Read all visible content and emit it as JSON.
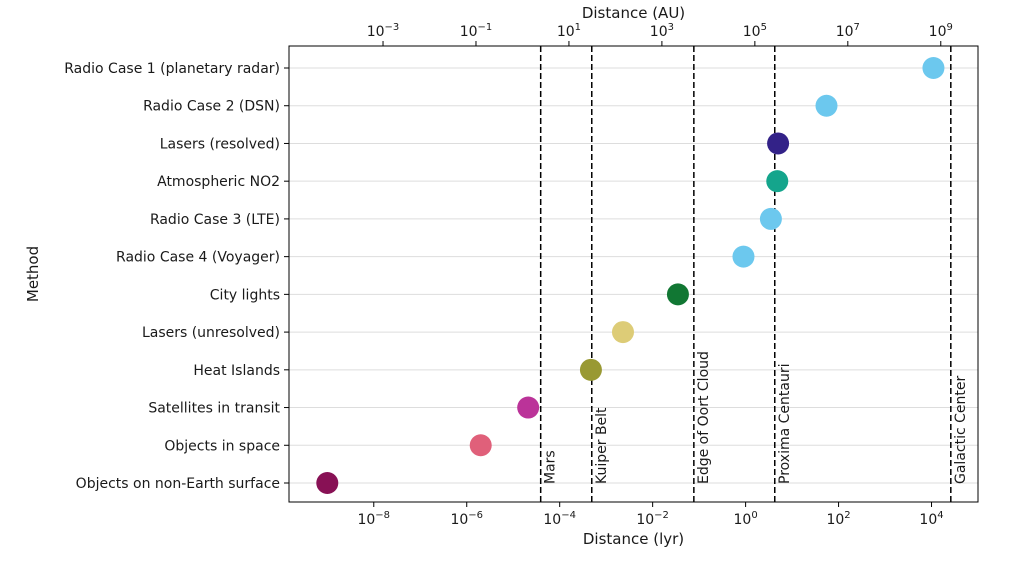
{
  "chart_data": {
    "type": "scatter",
    "title": "",
    "xlabel": "Distance (lyr)",
    "x2label": "Distance (AU)",
    "ylabel": "Method",
    "xscale": "log",
    "xlim": [
      1.5e-10,
      100000.0
    ],
    "grid": "horizontal",
    "bottom_ticks": [
      {
        "value": 1e-08,
        "base": "10",
        "exp": "−8"
      },
      {
        "value": 1e-06,
        "base": "10",
        "exp": "−6"
      },
      {
        "value": 0.0001,
        "base": "10",
        "exp": "−4"
      },
      {
        "value": 0.01,
        "base": "10",
        "exp": "−2"
      },
      {
        "value": 1,
        "base": "10",
        "exp": "0"
      },
      {
        "value": 100.0,
        "base": "10",
        "exp": "2"
      },
      {
        "value": 10000.0,
        "base": "10",
        "exp": "4"
      }
    ],
    "top_ticks": [
      {
        "value": 0.001,
        "base": "10",
        "exp": "−3"
      },
      {
        "value": 0.1,
        "base": "10",
        "exp": "−1"
      },
      {
        "value": 10.0,
        "base": "10",
        "exp": "1"
      },
      {
        "value": 1000.0,
        "base": "10",
        "exp": "3"
      },
      {
        "value": 100000.0,
        "base": "10",
        "exp": "5"
      },
      {
        "value": 10000000.0,
        "base": "10",
        "exp": "7"
      },
      {
        "value": 1000000000.0,
        "base": "10",
        "exp": "9"
      }
    ],
    "categories": [
      "Radio Case 1 (planetary radar)",
      "Radio Case 2 (DSN)",
      "Lasers (resolved)",
      "Atmospheric NO2",
      "Radio Case 3 (LTE)",
      "Radio Case 4 (Voyager)",
      "City lights",
      "Lasers (unresolved)",
      "Heat Islands",
      "Satellites in transit",
      "Objects in space",
      "Objects on non-Earth surface"
    ],
    "points": [
      {
        "category": "Radio Case 1 (planetary radar)",
        "x": 11000.0,
        "color": "#6cc8ee"
      },
      {
        "category": "Radio Case 2 (DSN)",
        "x": 55,
        "color": "#6cc8ee"
      },
      {
        "category": "Lasers (resolved)",
        "x": 5.0,
        "color": "#332288"
      },
      {
        "category": "Atmospheric NO2",
        "x": 4.8,
        "color": "#14a58c"
      },
      {
        "category": "Radio Case 3 (LTE)",
        "x": 3.5,
        "color": "#6cc8ee"
      },
      {
        "category": "Radio Case 4 (Voyager)",
        "x": 0.9,
        "color": "#6cc8ee"
      },
      {
        "category": "City lights",
        "x": 0.035,
        "color": "#117733"
      },
      {
        "category": "Lasers (unresolved)",
        "x": 0.0023,
        "color": "#ddcc77"
      },
      {
        "category": "Heat Islands",
        "x": 0.00047,
        "color": "#999933"
      },
      {
        "category": "Satellites in transit",
        "x": 2.1e-05,
        "color": "#bb3399"
      },
      {
        "category": "Objects in space",
        "x": 2e-06,
        "color": "#e0607a"
      },
      {
        "category": "Objects on non-Earth surface",
        "x": 1e-09,
        "color": "#881155"
      }
    ],
    "reference_lines": [
      {
        "label": "Mars",
        "x": 3.9e-05
      },
      {
        "label": "Kuiper Belt",
        "x": 0.00049
      },
      {
        "label": "Edge of Oort Cloud",
        "x": 0.077
      },
      {
        "label": "Proxima Centauri",
        "x": 4.24
      },
      {
        "label": "Galactic Center",
        "x": 26000.0
      }
    ]
  }
}
